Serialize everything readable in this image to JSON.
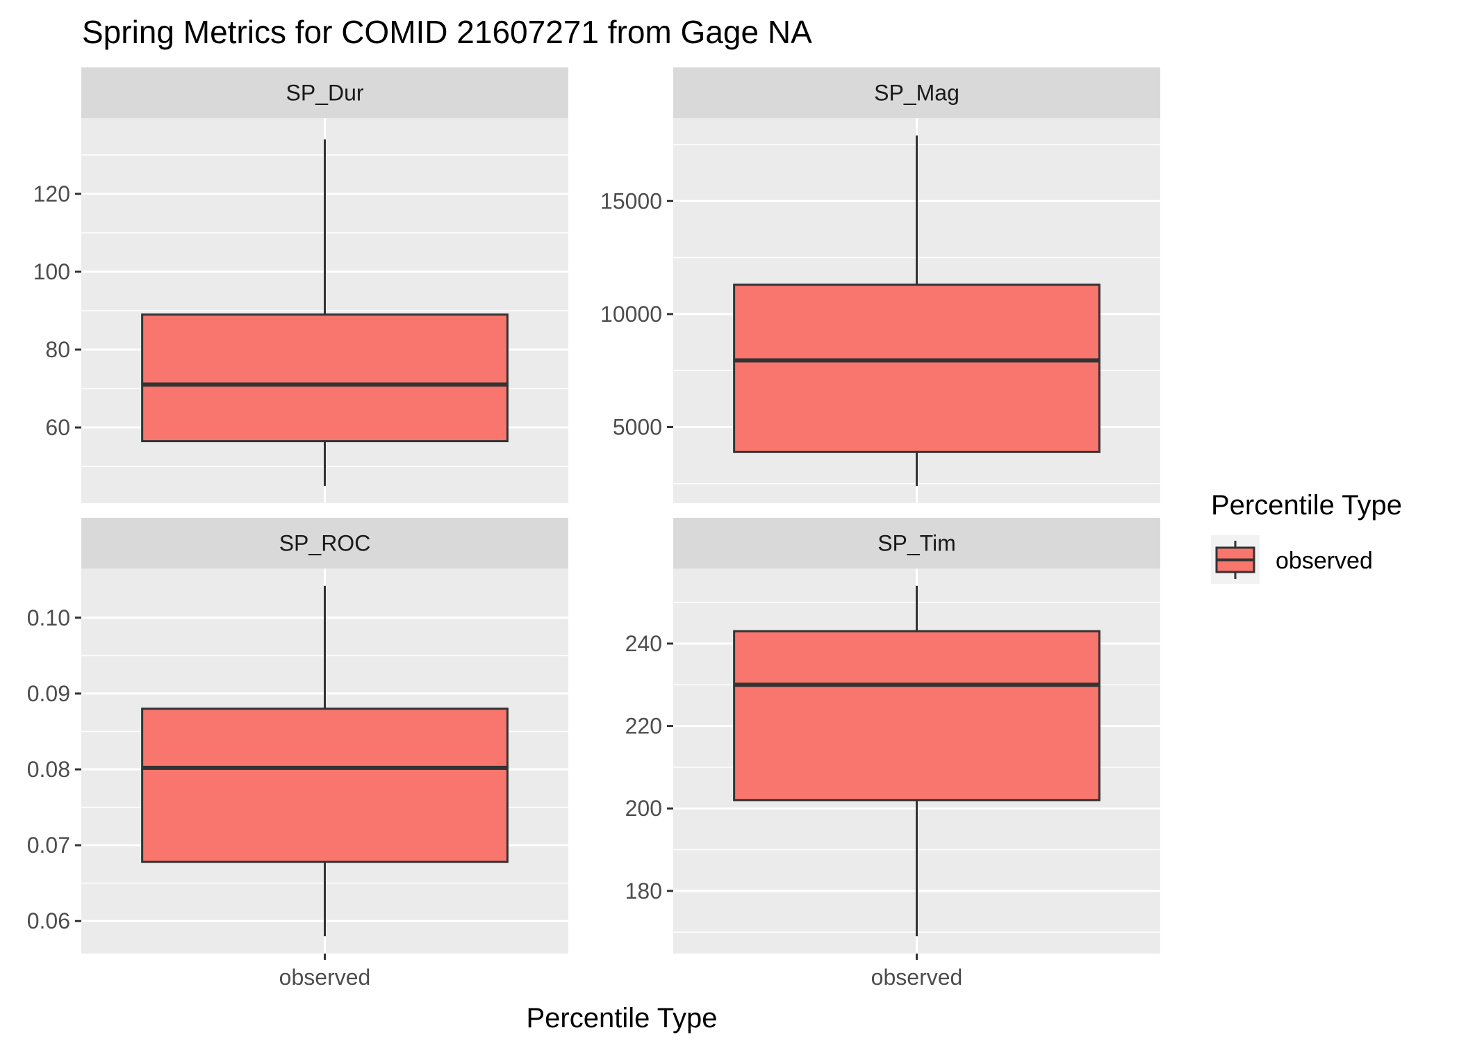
{
  "chart_data": {
    "type": "boxplot",
    "title": "Spring Metrics for COMID 21607271 from Gage NA",
    "xlabel": "Percentile Type",
    "ylabel": "",
    "categories": [
      "observed"
    ],
    "grid": true,
    "legend": {
      "title": "Percentile Type",
      "placement": "right",
      "entries": [
        {
          "label": "observed",
          "color": "#F8766D"
        }
      ]
    },
    "colors": {
      "box_fill": "#F8766D",
      "box_stroke": "#333333",
      "panel_background": "#EBEBEB",
      "strip_background": "#D9D9D9",
      "grid": "#FFFFFF"
    },
    "facets": [
      {
        "name": "SP_Dur",
        "ylim": [
          45,
          135
        ],
        "yticks": [
          60,
          80,
          100,
          120
        ],
        "yticklabels": [
          "60",
          "80",
          "100",
          "120"
        ],
        "boxes": [
          {
            "category": "observed",
            "min": 45,
            "q1": 56.5,
            "median": 71,
            "q3": 89,
            "max": 134
          }
        ]
      },
      {
        "name": "SP_Mag",
        "ylim": [
          2400,
          17900
        ],
        "yticks": [
          5000,
          10000,
          15000
        ],
        "yticklabels": [
          "5000",
          "10000",
          "15000"
        ],
        "boxes": [
          {
            "category": "observed",
            "min": 2400,
            "q1": 3900,
            "median": 7950,
            "q3": 11300,
            "max": 17900
          }
        ]
      },
      {
        "name": "SP_ROC",
        "ylim": [
          0.058,
          0.1042
        ],
        "yticks": [
          0.06,
          0.07,
          0.08,
          0.09,
          0.1
        ],
        "yticklabels": [
          "0.06",
          "0.07",
          "0.08",
          "0.09",
          "0.10"
        ],
        "boxes": [
          {
            "category": "observed",
            "min": 0.058,
            "q1": 0.0678,
            "median": 0.0802,
            "q3": 0.088,
            "max": 0.1042
          }
        ]
      },
      {
        "name": "SP_Tim",
        "ylim": [
          169,
          254
        ],
        "yticks": [
          180,
          200,
          220,
          240
        ],
        "yticklabels": [
          "180",
          "200",
          "220",
          "240"
        ],
        "boxes": [
          {
            "category": "observed",
            "min": 169,
            "q1": 202,
            "median": 230,
            "q3": 243,
            "max": 254
          }
        ]
      }
    ]
  }
}
